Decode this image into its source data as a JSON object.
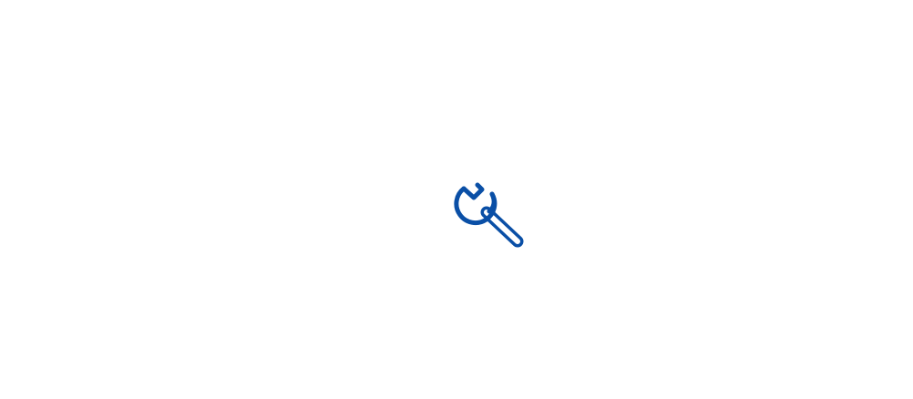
{
  "icon": {
    "name": "wrench-icon",
    "color": "#0a4fa6",
    "background": "#ffffff"
  }
}
